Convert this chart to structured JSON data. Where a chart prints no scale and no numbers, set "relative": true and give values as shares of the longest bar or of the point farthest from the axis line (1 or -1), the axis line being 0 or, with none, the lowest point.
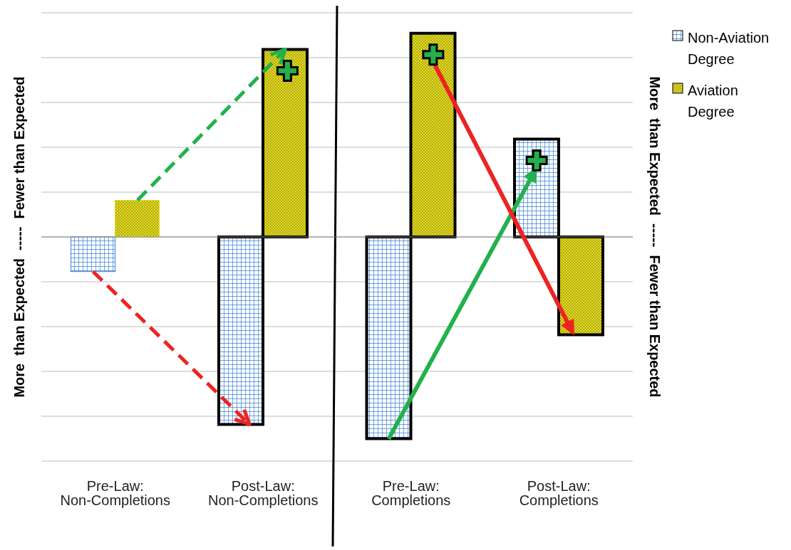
{
  "chart_data": {
    "type": "bar",
    "categories": [
      "Pre-Law: Non-Completions",
      "Post-Law: Non-Completions",
      "Pre-Law: Completions",
      "Post-Law: Completions"
    ],
    "series": [
      {
        "name": "Non-Aviation Degree",
        "color": "#3a7fd5",
        "values": [
          -0.17,
          -0.92,
          -0.99,
          0.48
        ]
      },
      {
        "name": "Aviation Degree",
        "color": "#e6dc1e",
        "values": [
          0.18,
          0.92,
          1,
          -0.48
        ]
      }
    ],
    "relative": true,
    "grid": "y",
    "legend": "top right",
    "ylabel": "More  than Expected  -----  Fewer than Expected",
    "y2label": "More  than Expected  -----  Fewer than Expected"
  }
}
